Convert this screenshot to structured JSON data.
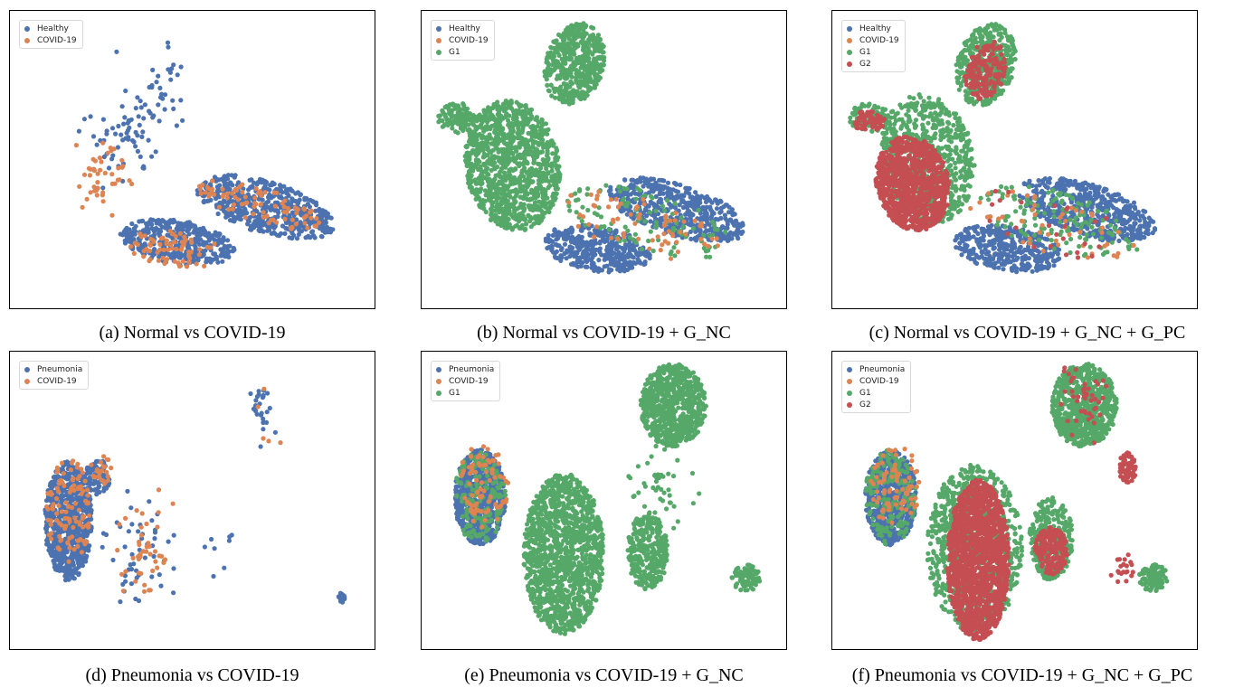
{
  "colors": {
    "Healthy": "#4c72b0",
    "Pneumonia": "#4c72b0",
    "COVID-19": "#dd8452",
    "G1": "#55a868",
    "G2": "#c44e52"
  },
  "chart_data": [
    {
      "type": "scatter",
      "id": "a",
      "caption": "(a) Normal vs COVID-19",
      "legend": [
        "Healthy",
        "COVID-19"
      ],
      "title": "",
      "xlabel": "",
      "ylabel": "",
      "series": [
        {
          "name": "Healthy",
          "clusters": [
            {
              "shape": "ellipse",
              "cx": 0.7,
              "cy": 0.34,
              "rx": 0.2,
              "ry": 0.085,
              "angle": -22,
              "n": 520
            },
            {
              "shape": "ellipse",
              "cx": 0.46,
              "cy": 0.22,
              "rx": 0.16,
              "ry": 0.075,
              "angle": -12,
              "n": 380
            },
            {
              "shape": "scatter",
              "cx": 0.32,
              "cy": 0.6,
              "rx": 0.1,
              "ry": 0.16,
              "n": 70
            },
            {
              "shape": "scatter",
              "cx": 0.42,
              "cy": 0.76,
              "rx": 0.08,
              "ry": 0.14,
              "n": 25
            }
          ]
        },
        {
          "name": "COVID-19",
          "clusters": [
            {
              "shape": "ellipse",
              "cx": 0.68,
              "cy": 0.35,
              "rx": 0.18,
              "ry": 0.06,
              "angle": -22,
              "n": 90
            },
            {
              "shape": "ellipse",
              "cx": 0.45,
              "cy": 0.2,
              "rx": 0.14,
              "ry": 0.06,
              "angle": -12,
              "n": 70
            },
            {
              "shape": "scatter",
              "cx": 0.26,
              "cy": 0.45,
              "rx": 0.08,
              "ry": 0.12,
              "n": 45
            }
          ]
        }
      ]
    },
    {
      "type": "scatter",
      "id": "b",
      "caption": "(b) Normal vs COVID-19 + G_NC",
      "legend": [
        "Healthy",
        "COVID-19",
        "G1"
      ],
      "title": "",
      "xlabel": "",
      "ylabel": "",
      "series": [
        {
          "name": "G1",
          "clusters": [
            {
              "shape": "ellipse",
              "cx": 0.25,
              "cy": 0.48,
              "rx": 0.13,
              "ry": 0.22,
              "angle": 5,
              "n": 1100
            },
            {
              "shape": "ellipse",
              "cx": 0.42,
              "cy": 0.82,
              "rx": 0.08,
              "ry": 0.14,
              "angle": -10,
              "n": 480
            },
            {
              "shape": "ellipse",
              "cx": 0.1,
              "cy": 0.64,
              "rx": 0.055,
              "ry": 0.05,
              "angle": 0,
              "n": 110
            }
          ]
        },
        {
          "name": "Healthy",
          "clusters": [
            {
              "shape": "ellipse",
              "cx": 0.7,
              "cy": 0.33,
              "rx": 0.2,
              "ry": 0.085,
              "angle": -22,
              "n": 520
            },
            {
              "shape": "ellipse",
              "cx": 0.48,
              "cy": 0.2,
              "rx": 0.15,
              "ry": 0.075,
              "angle": -12,
              "n": 380
            }
          ]
        },
        {
          "name": "G1",
          "clusters": [
            {
              "shape": "ellipse",
              "cx": 0.62,
              "cy": 0.29,
              "rx": 0.24,
              "ry": 0.1,
              "angle": -20,
              "n": 110
            }
          ]
        },
        {
          "name": "COVID-19",
          "clusters": [
            {
              "shape": "ellipse",
              "cx": 0.6,
              "cy": 0.28,
              "rx": 0.24,
              "ry": 0.09,
              "angle": -20,
              "n": 70
            }
          ]
        }
      ]
    },
    {
      "type": "scatter",
      "id": "c",
      "caption": "(c) Normal vs COVID-19 + G_NC + G_PC",
      "legend": [
        "Healthy",
        "COVID-19",
        "G1",
        "G2"
      ],
      "title": "",
      "xlabel": "",
      "ylabel": "",
      "series": [
        {
          "name": "G1",
          "clusters": [
            {
              "shape": "ellipse",
              "cx": 0.26,
              "cy": 0.5,
              "rx": 0.13,
              "ry": 0.22,
              "angle": 5,
              "n": 700
            },
            {
              "shape": "ellipse",
              "cx": 0.42,
              "cy": 0.82,
              "rx": 0.08,
              "ry": 0.14,
              "angle": -10,
              "n": 420
            },
            {
              "shape": "ellipse",
              "cx": 0.1,
              "cy": 0.64,
              "rx": 0.055,
              "ry": 0.05,
              "angle": 0,
              "n": 90
            }
          ]
        },
        {
          "name": "G2",
          "clusters": [
            {
              "shape": "ellipse",
              "cx": 0.22,
              "cy": 0.42,
              "rx": 0.1,
              "ry": 0.16,
              "angle": 8,
              "n": 950
            },
            {
              "shape": "ellipse",
              "cx": 0.42,
              "cy": 0.8,
              "rx": 0.055,
              "ry": 0.1,
              "angle": -10,
              "n": 160
            },
            {
              "shape": "ellipse",
              "cx": 0.1,
              "cy": 0.63,
              "rx": 0.045,
              "ry": 0.035,
              "angle": 0,
              "n": 60
            }
          ]
        },
        {
          "name": "Healthy",
          "clusters": [
            {
              "shape": "ellipse",
              "cx": 0.7,
              "cy": 0.33,
              "rx": 0.2,
              "ry": 0.085,
              "angle": -22,
              "n": 520
            },
            {
              "shape": "ellipse",
              "cx": 0.48,
              "cy": 0.2,
              "rx": 0.15,
              "ry": 0.075,
              "angle": -12,
              "n": 380
            }
          ]
        },
        {
          "name": "G1",
          "clusters": [
            {
              "shape": "ellipse",
              "cx": 0.62,
              "cy": 0.29,
              "rx": 0.24,
              "ry": 0.1,
              "angle": -20,
              "n": 140
            }
          ]
        },
        {
          "name": "COVID-19",
          "clusters": [
            {
              "shape": "ellipse",
              "cx": 0.6,
              "cy": 0.28,
              "rx": 0.24,
              "ry": 0.09,
              "angle": -20,
              "n": 50
            }
          ]
        },
        {
          "name": "G2",
          "clusters": [
            {
              "shape": "ellipse",
              "cx": 0.6,
              "cy": 0.28,
              "rx": 0.24,
              "ry": 0.09,
              "angle": -20,
              "n": 25
            }
          ]
        }
      ]
    },
    {
      "type": "scatter",
      "id": "d",
      "caption": "(d) Pneumonia vs COVID-19",
      "legend": [
        "Pneumonia",
        "COVID-19"
      ],
      "title": "",
      "xlabel": "",
      "ylabel": "",
      "series": [
        {
          "name": "Pneumonia",
          "clusters": [
            {
              "shape": "ellipse",
              "cx": 0.16,
              "cy": 0.43,
              "rx": 0.065,
              "ry": 0.2,
              "angle": 0,
              "n": 650
            },
            {
              "shape": "ellipse",
              "cx": 0.24,
              "cy": 0.58,
              "rx": 0.035,
              "ry": 0.06,
              "angle": 0,
              "n": 90
            },
            {
              "shape": "scatter",
              "cx": 0.36,
              "cy": 0.32,
              "rx": 0.08,
              "ry": 0.16,
              "n": 50
            },
            {
              "shape": "scatter",
              "cx": 0.69,
              "cy": 0.8,
              "rx": 0.03,
              "ry": 0.08,
              "n": 28
            },
            {
              "shape": "ellipse",
              "cx": 0.91,
              "cy": 0.17,
              "rx": 0.01,
              "ry": 0.02,
              "angle": 0,
              "n": 15
            },
            {
              "shape": "scatter",
              "cx": 0.58,
              "cy": 0.32,
              "rx": 0.06,
              "ry": 0.15,
              "n": 8
            }
          ]
        },
        {
          "name": "COVID-19",
          "clusters": [
            {
              "shape": "ellipse",
              "cx": 0.16,
              "cy": 0.46,
              "rx": 0.06,
              "ry": 0.18,
              "angle": 0,
              "n": 110
            },
            {
              "shape": "ellipse",
              "cx": 0.25,
              "cy": 0.6,
              "rx": 0.03,
              "ry": 0.05,
              "angle": 0,
              "n": 25
            },
            {
              "shape": "scatter",
              "cx": 0.37,
              "cy": 0.3,
              "rx": 0.06,
              "ry": 0.16,
              "n": 45
            },
            {
              "shape": "scatter",
              "cx": 0.72,
              "cy": 0.77,
              "rx": 0.05,
              "ry": 0.12,
              "n": 5
            }
          ]
        }
      ]
    },
    {
      "type": "scatter",
      "id": "e",
      "caption": "(e) Pneumonia vs COVID-19 + G_NC",
      "legend": [
        "Pneumonia",
        "COVID-19",
        "G1"
      ],
      "title": "",
      "xlabel": "",
      "ylabel": "",
      "series": [
        {
          "name": "G1",
          "clusters": [
            {
              "shape": "ellipse",
              "cx": 0.39,
              "cy": 0.32,
              "rx": 0.11,
              "ry": 0.27,
              "angle": 0,
              "n": 1300
            },
            {
              "shape": "ellipse",
              "cx": 0.69,
              "cy": 0.82,
              "rx": 0.09,
              "ry": 0.14,
              "angle": 0,
              "n": 700
            },
            {
              "shape": "ellipse",
              "cx": 0.62,
              "cy": 0.33,
              "rx": 0.055,
              "ry": 0.13,
              "angle": 0,
              "n": 320
            },
            {
              "shape": "ellipse",
              "cx": 0.89,
              "cy": 0.24,
              "rx": 0.04,
              "ry": 0.045,
              "angle": 0,
              "n": 90
            },
            {
              "shape": "scatter",
              "cx": 0.64,
              "cy": 0.55,
              "rx": 0.08,
              "ry": 0.12,
              "n": 45
            }
          ]
        },
        {
          "name": "Pneumonia",
          "clusters": [
            {
              "shape": "ellipse",
              "cx": 0.16,
              "cy": 0.51,
              "rx": 0.07,
              "ry": 0.16,
              "angle": 0,
              "n": 650
            }
          ]
        },
        {
          "name": "G1",
          "clusters": [
            {
              "shape": "ellipse",
              "cx": 0.16,
              "cy": 0.51,
              "rx": 0.07,
              "ry": 0.16,
              "angle": 0,
              "n": 170
            }
          ]
        },
        {
          "name": "COVID-19",
          "clusters": [
            {
              "shape": "ellipse",
              "cx": 0.17,
              "cy": 0.55,
              "rx": 0.07,
              "ry": 0.14,
              "angle": 0,
              "n": 80
            }
          ]
        }
      ]
    },
    {
      "type": "scatter",
      "id": "f",
      "caption": "(f) Pneumonia vs COVID-19 + G_NC + G_PC",
      "legend": [
        "Pneumonia",
        "COVID-19",
        "G1",
        "G2"
      ],
      "title": "",
      "xlabel": "",
      "ylabel": "",
      "series": [
        {
          "name": "G1",
          "clusters": [
            {
              "shape": "ellipse",
              "cx": 0.39,
              "cy": 0.34,
              "rx": 0.13,
              "ry": 0.28,
              "angle": 0,
              "n": 800
            },
            {
              "shape": "ellipse",
              "cx": 0.69,
              "cy": 0.82,
              "rx": 0.09,
              "ry": 0.14,
              "angle": 0,
              "n": 700
            },
            {
              "shape": "ellipse",
              "cx": 0.6,
              "cy": 0.37,
              "rx": 0.06,
              "ry": 0.14,
              "angle": 0,
              "n": 300
            },
            {
              "shape": "ellipse",
              "cx": 0.88,
              "cy": 0.24,
              "rx": 0.04,
              "ry": 0.045,
              "angle": 0,
              "n": 90
            }
          ]
        },
        {
          "name": "G2",
          "clusters": [
            {
              "shape": "ellipse",
              "cx": 0.4,
              "cy": 0.3,
              "rx": 0.085,
              "ry": 0.27,
              "angle": 0,
              "n": 1500
            },
            {
              "shape": "ellipse",
              "cx": 0.6,
              "cy": 0.33,
              "rx": 0.045,
              "ry": 0.08,
              "angle": 0,
              "n": 180
            },
            {
              "shape": "ellipse",
              "cx": 0.81,
              "cy": 0.61,
              "rx": 0.025,
              "ry": 0.05,
              "angle": 0,
              "n": 70
            },
            {
              "shape": "scatter",
              "cx": 0.68,
              "cy": 0.84,
              "rx": 0.07,
              "ry": 0.1,
              "n": 45
            },
            {
              "shape": "scatter",
              "cx": 0.8,
              "cy": 0.27,
              "rx": 0.03,
              "ry": 0.04,
              "n": 20
            }
          ]
        },
        {
          "name": "Pneumonia",
          "clusters": [
            {
              "shape": "ellipse",
              "cx": 0.16,
              "cy": 0.51,
              "rx": 0.07,
              "ry": 0.16,
              "angle": 0,
              "n": 650
            }
          ]
        },
        {
          "name": "G1",
          "clusters": [
            {
              "shape": "ellipse",
              "cx": 0.16,
              "cy": 0.51,
              "rx": 0.07,
              "ry": 0.16,
              "angle": 0,
              "n": 170
            }
          ]
        },
        {
          "name": "COVID-19",
          "clusters": [
            {
              "shape": "ellipse",
              "cx": 0.17,
              "cy": 0.55,
              "rx": 0.07,
              "ry": 0.14,
              "angle": 0,
              "n": 80
            }
          ]
        }
      ]
    }
  ]
}
